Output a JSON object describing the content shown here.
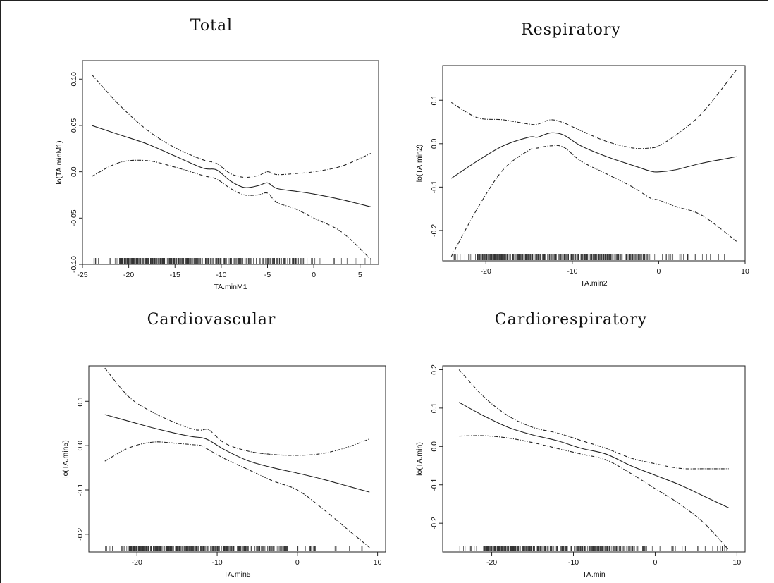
{
  "chart_data": [
    {
      "type": "line",
      "title": "Total",
      "xlabel": "TA.minM1",
      "ylabel": "lo(TA.minM1)",
      "xlim": [
        -25,
        7
      ],
      "ylim": [
        -0.1,
        0.12
      ],
      "xticks": [
        -25,
        -20,
        -15,
        -10,
        -5,
        0,
        5
      ],
      "yticks": [
        -0.1,
        -0.05,
        0.0,
        0.05,
        0.1
      ],
      "xtick_labels": [
        "-25",
        "-20",
        "-15",
        "-10",
        "-5",
        "0",
        "5"
      ],
      "ytick_labels": [
        "-0.10",
        "-0.05",
        "0.0",
        "0.05",
        "0.10"
      ],
      "series": [
        {
          "style": "solid",
          "x": [
            -24,
            -21,
            -18,
            -15,
            -12,
            -10.5,
            -9,
            -7.5,
            -6,
            -5,
            -4,
            -2,
            0,
            3,
            6.2
          ],
          "y": [
            0.05,
            0.04,
            0.03,
            0.017,
            0.004,
            0.002,
            -0.01,
            -0.017,
            -0.015,
            -0.012,
            -0.018,
            -0.021,
            -0.024,
            -0.03,
            -0.038
          ]
        },
        {
          "style": "dashed",
          "x": [
            -24,
            -21,
            -18,
            -15,
            -12,
            -10.5,
            -9,
            -7.5,
            -6,
            -5,
            -4,
            -2,
            0,
            3,
            6.2
          ],
          "y": [
            0.105,
            0.072,
            0.045,
            0.026,
            0.013,
            0.009,
            -0.002,
            -0.006,
            -0.004,
            0.0,
            -0.003,
            -0.002,
            0.0,
            0.006,
            0.02
          ]
        },
        {
          "style": "dashed",
          "x": [
            -24,
            -21,
            -18,
            -15,
            -12,
            -10.5,
            -9,
            -7.5,
            -6,
            -5,
            -4,
            -2,
            0,
            3,
            6.2
          ],
          "y": [
            -0.005,
            0.01,
            0.012,
            0.005,
            -0.004,
            -0.008,
            -0.018,
            -0.025,
            -0.025,
            -0.023,
            -0.033,
            -0.04,
            -0.05,
            -0.065,
            -0.095
          ]
        }
      ]
    },
    {
      "type": "line",
      "title": "Respiratory",
      "xlabel": "TA.min2",
      "ylabel": "lo(TA.min2)",
      "xlim": [
        -25,
        10
      ],
      "ylim": [
        -0.27,
        0.18
      ],
      "xticks": [
        -20,
        -10,
        0,
        10
      ],
      "yticks": [
        -0.2,
        -0.1,
        0.0,
        0.1
      ],
      "xtick_labels": [
        "-20",
        "-10",
        "0",
        "10"
      ],
      "ytick_labels": [
        "-0.2",
        "-0.1",
        "0.0",
        "0.1"
      ],
      "series": [
        {
          "style": "solid",
          "x": [
            -24,
            -21,
            -18,
            -15,
            -14,
            -12.5,
            -11,
            -9,
            -6,
            -3,
            -1,
            0,
            2,
            5,
            9
          ],
          "y": [
            -0.08,
            -0.04,
            -0.005,
            0.015,
            0.015,
            0.025,
            0.02,
            -0.005,
            -0.03,
            -0.05,
            -0.063,
            -0.065,
            -0.06,
            -0.045,
            -0.03
          ]
        },
        {
          "style": "dashed",
          "x": [
            -24,
            -21,
            -18,
            -15,
            -14,
            -12.5,
            -11,
            -9,
            -6,
            -3,
            -1,
            0,
            2,
            5,
            9
          ],
          "y": [
            0.095,
            0.06,
            0.055,
            0.045,
            0.045,
            0.055,
            0.048,
            0.03,
            0.005,
            -0.01,
            -0.01,
            -0.005,
            0.02,
            0.07,
            0.17
          ]
        },
        {
          "style": "dashed",
          "x": [
            -24,
            -21,
            -18,
            -15,
            -14,
            -12.5,
            -11,
            -9,
            -6,
            -3,
            -1,
            0,
            2,
            5,
            9
          ],
          "y": [
            -0.26,
            -0.15,
            -0.06,
            -0.015,
            -0.01,
            -0.005,
            -0.008,
            -0.04,
            -0.07,
            -0.1,
            -0.125,
            -0.13,
            -0.145,
            -0.165,
            -0.225
          ]
        }
      ]
    },
    {
      "type": "line",
      "title": "Cardiovascular",
      "xlabel": "TA.min5",
      "ylabel": "lo(TA.min5)",
      "xlim": [
        -26,
        11
      ],
      "ylim": [
        -0.24,
        0.18
      ],
      "xticks": [
        -20,
        -10,
        0,
        10
      ],
      "yticks": [
        -0.2,
        -0.1,
        0.0,
        0.1
      ],
      "xtick_labels": [
        "-20",
        "-10",
        "0",
        "10"
      ],
      "ytick_labels": [
        "-0.2",
        "-0.1",
        "0.0",
        "0.1"
      ],
      "series": [
        {
          "style": "solid",
          "x": [
            -24,
            -21,
            -18,
            -15,
            -13,
            -12,
            -11,
            -9,
            -6,
            -3,
            0,
            3,
            6,
            9
          ],
          "y": [
            0.07,
            0.055,
            0.04,
            0.027,
            0.02,
            0.018,
            0.012,
            -0.01,
            -0.035,
            -0.05,
            -0.062,
            -0.075,
            -0.09,
            -0.105
          ]
        },
        {
          "style": "dashed",
          "x": [
            -24,
            -21,
            -18,
            -15,
            -13,
            -12,
            -11,
            -9,
            -6,
            -3,
            0,
            3,
            6,
            9
          ],
          "y": [
            0.175,
            0.11,
            0.075,
            0.05,
            0.037,
            0.035,
            0.035,
            0.005,
            -0.013,
            -0.02,
            -0.022,
            -0.018,
            -0.005,
            0.015
          ]
        },
        {
          "style": "dashed",
          "x": [
            -24,
            -21,
            -18,
            -15,
            -13,
            -12,
            -11,
            -9,
            -6,
            -3,
            0,
            3,
            6,
            9
          ],
          "y": [
            -0.035,
            -0.005,
            0.008,
            0.005,
            0.002,
            0.0,
            -0.01,
            -0.03,
            -0.055,
            -0.08,
            -0.1,
            -0.14,
            -0.185,
            -0.23
          ]
        }
      ]
    },
    {
      "type": "line",
      "title": "Cardiorespiratory",
      "xlabel": "TA.min",
      "ylabel": "lo(TA.min)",
      "xlim": [
        -26,
        11
      ],
      "ylim": [
        -0.275,
        0.21
      ],
      "xticks": [
        -20,
        -10,
        0,
        10
      ],
      "yticks": [
        -0.2,
        -0.1,
        0.0,
        0.1,
        0.2
      ],
      "xtick_labels": [
        "-20",
        "-10",
        "0",
        "10"
      ],
      "ytick_labels": [
        "-0.2",
        "-0.1",
        "0.0",
        "0.1",
        "0.2"
      ],
      "series": [
        {
          "style": "solid",
          "x": [
            -24,
            -21,
            -18,
            -15,
            -12,
            -9,
            -6,
            -3,
            0,
            3,
            6,
            9
          ],
          "y": [
            0.115,
            0.08,
            0.05,
            0.03,
            0.015,
            -0.005,
            -0.02,
            -0.05,
            -0.075,
            -0.1,
            -0.13,
            -0.16
          ]
        },
        {
          "style": "dashed",
          "x": [
            -24,
            -21,
            -18,
            -15,
            -12,
            -9,
            -6,
            -3,
            0,
            3,
            6,
            9
          ],
          "y": [
            0.2,
            0.13,
            0.08,
            0.05,
            0.035,
            0.015,
            -0.005,
            -0.03,
            -0.045,
            -0.057,
            -0.058,
            -0.058
          ]
        },
        {
          "style": "dashed",
          "x": [
            -24,
            -21,
            -18,
            -15,
            -12,
            -9,
            -6,
            -3,
            0,
            3,
            6,
            9
          ],
          "y": [
            0.027,
            0.028,
            0.022,
            0.01,
            -0.005,
            -0.02,
            -0.035,
            -0.07,
            -0.11,
            -0.15,
            -0.2,
            -0.27
          ]
        }
      ]
    }
  ]
}
